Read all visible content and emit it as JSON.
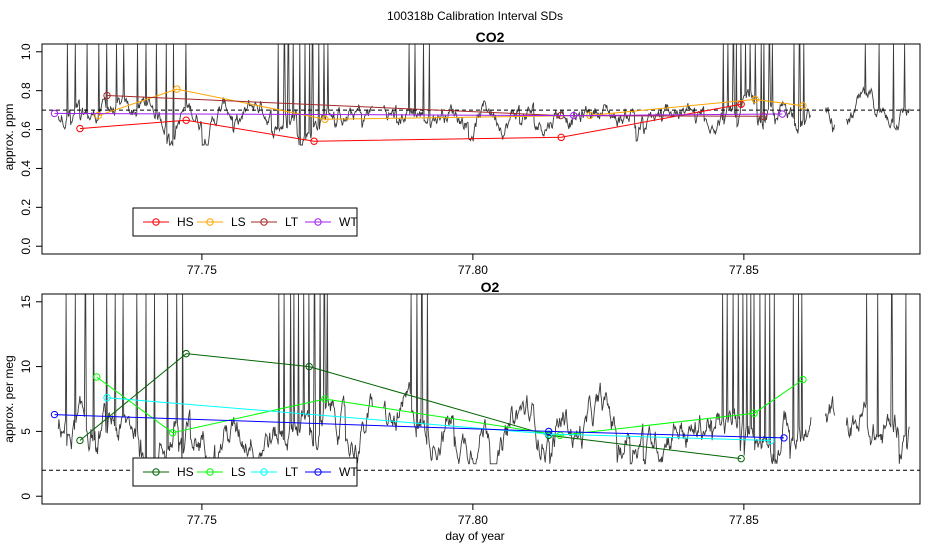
{
  "figure_title": "100318b   Calibration Interval SDs",
  "chart_data": [
    {
      "type": "line",
      "title": "CO2",
      "xlabel": "",
      "ylabel": "approx. ppm",
      "xlim": [
        77.7205,
        77.8825
      ],
      "ylim": [
        -0.04,
        1.04
      ],
      "x_ticks": [
        77.75,
        77.8,
        77.85
      ],
      "x_tick_labels": [
        "77.75",
        "77.80",
        "77.85"
      ],
      "y_ticks": [
        0.0,
        0.2,
        0.4,
        0.6,
        0.8,
        1.0
      ],
      "y_tick_labels": [
        "0.0",
        "0.2",
        "0.4",
        "0.6",
        "0.8",
        "1.0"
      ],
      "reference_line": 0.7,
      "legend_position": "bottom-left",
      "series": [
        {
          "name": "HS",
          "color": "#ff0000",
          "x": [
            77.7275,
            77.7471,
            77.7707,
            77.8163,
            77.8495
          ],
          "y": [
            0.605,
            0.648,
            0.54,
            0.56,
            0.73
          ]
        },
        {
          "name": "LS",
          "color": "#ffa500",
          "x": [
            77.7309,
            77.7454,
            77.7727,
            77.8216,
            77.8521,
            77.8609
          ],
          "y": [
            0.672,
            0.808,
            0.653,
            0.673,
            0.755,
            0.722
          ]
        },
        {
          "name": "LT",
          "color": "#a52a2a",
          "x": [
            77.7325,
            77.8162,
            77.8536
          ],
          "y": [
            0.775,
            0.672,
            0.668
          ]
        },
        {
          "name": "WT",
          "color": "#a020f0",
          "x": [
            77.7228,
            77.8186,
            77.8571
          ],
          "y": [
            0.683,
            0.672,
            0.68
          ]
        }
      ],
      "trace": {
        "name": "raw",
        "color": "#3a3a3a",
        "base": 0.69,
        "amplitude": 0.07,
        "floor": 0.52,
        "spikes_to": 1.04
      }
    },
    {
      "type": "line",
      "title": "O2",
      "xlabel": "day of year",
      "ylabel": "approx. per meg",
      "xlim": [
        77.7205,
        77.8825
      ],
      "ylim": [
        -0.6,
        15.6
      ],
      "x_ticks": [
        77.75,
        77.8,
        77.85
      ],
      "x_tick_labels": [
        "77.75",
        "77.80",
        "77.85"
      ],
      "y_ticks": [
        0,
        5,
        10,
        15
      ],
      "y_tick_labels": [
        "0",
        "5",
        "10",
        "15"
      ],
      "reference_line": 2.0,
      "legend_position": "bottom-left",
      "series": [
        {
          "name": "HS",
          "color": "#006400",
          "x": [
            77.7275,
            77.7471,
            77.7698,
            77.814,
            77.8495
          ],
          "y": [
            4.3,
            11.0,
            10.0,
            4.7,
            2.9
          ]
        },
        {
          "name": "LS",
          "color": "#00ff00",
          "x": [
            77.7306,
            77.7446,
            77.7727,
            77.8161,
            77.8519,
            77.8609
          ],
          "y": [
            9.2,
            4.9,
            7.5,
            4.7,
            6.4,
            9.0
          ]
        },
        {
          "name": "LT",
          "color": "#00ffff",
          "x": [
            77.7325,
            77.814,
            77.855
          ],
          "y": [
            7.6,
            4.8,
            4.3
          ]
        },
        {
          "name": "WT",
          "color": "#0000ff",
          "x": [
            77.7228,
            77.814,
            77.8574
          ],
          "y": [
            6.3,
            5.0,
            4.5
          ]
        }
      ],
      "trace": {
        "name": "raw",
        "color": "#3a3a3a",
        "base": 5.5,
        "amplitude": 1.8,
        "floor": 2.5,
        "spikes_to": 15.6
      }
    }
  ]
}
